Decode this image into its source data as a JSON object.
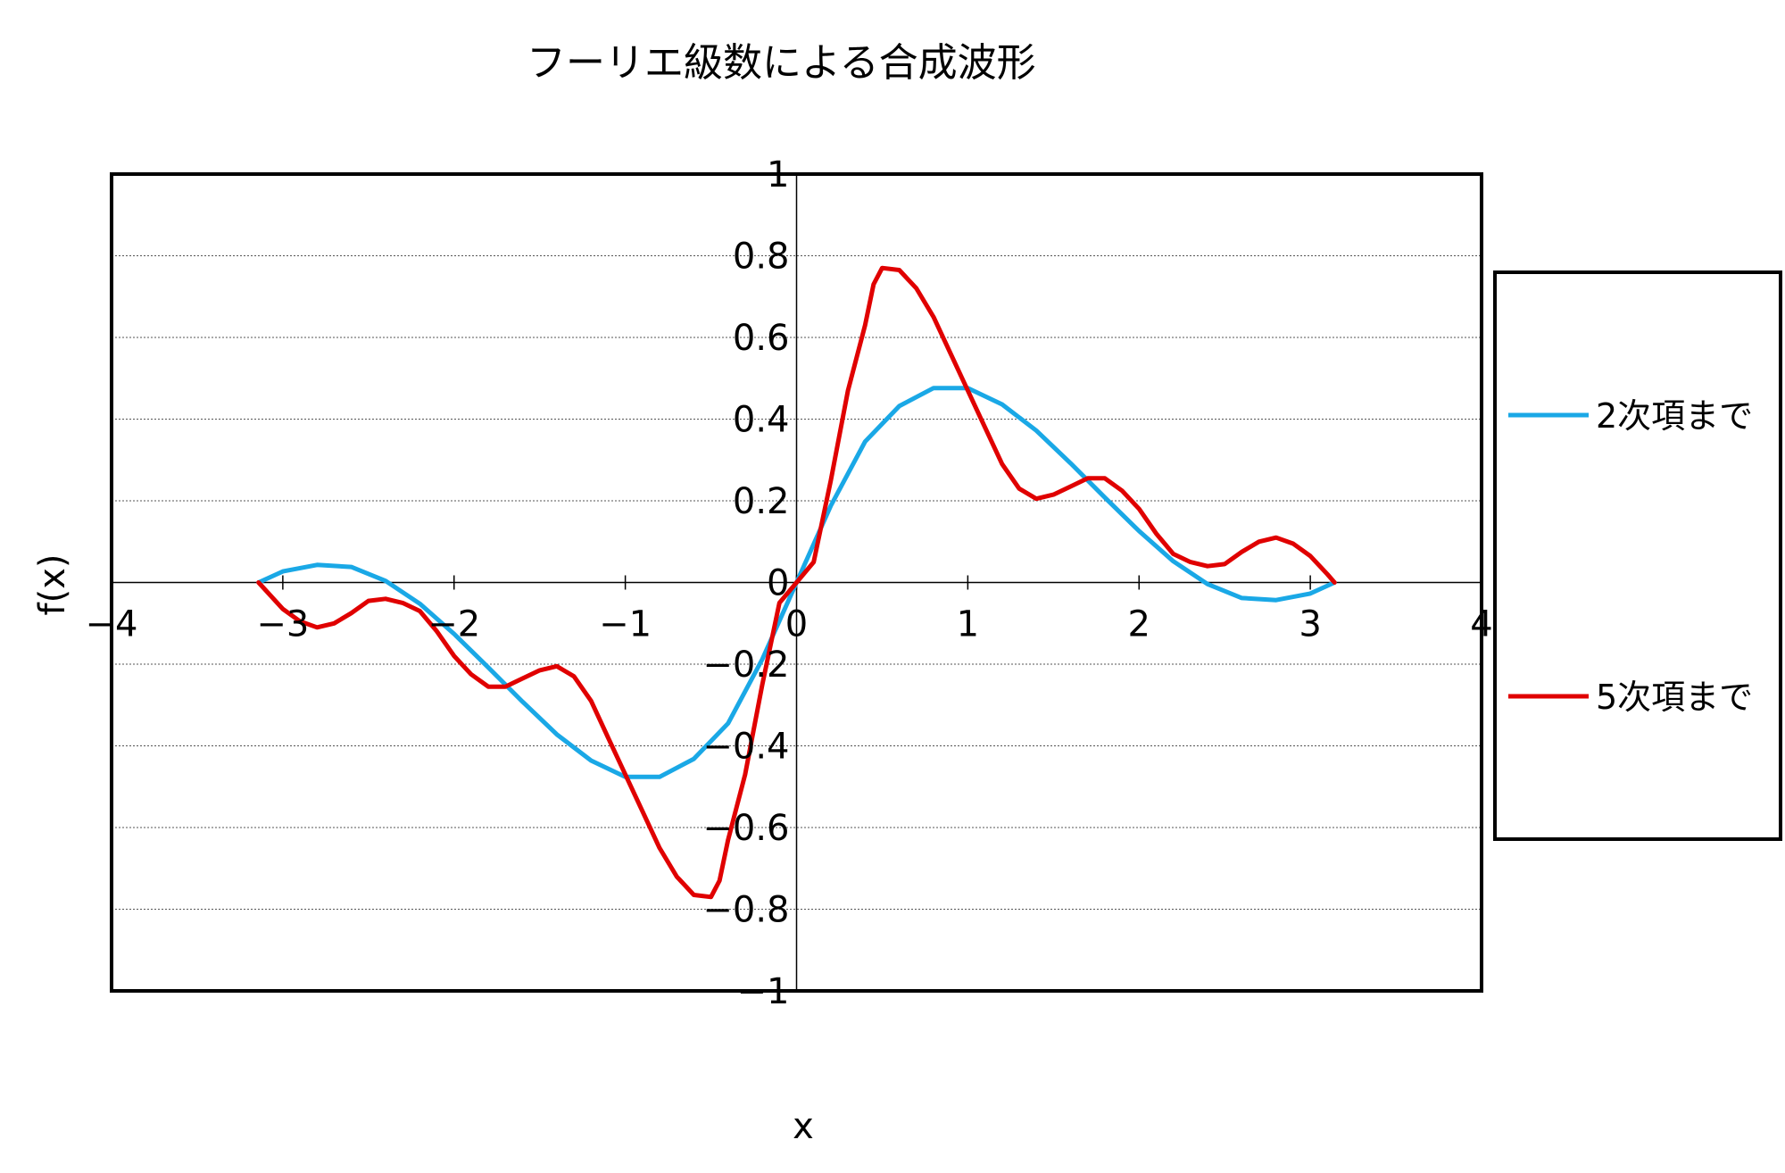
{
  "chart_data": {
    "type": "line",
    "title": "フーリエ級数による合成波形",
    "xlabel": "x",
    "ylabel": "f(x)",
    "xlim": [
      -4,
      4
    ],
    "ylim": [
      -1,
      1
    ],
    "x_ticks": [
      "−4",
      "−3",
      "−2",
      "−1",
      "0",
      "1",
      "2",
      "3",
      "4"
    ],
    "y_ticks": [
      "−1",
      "−0.8",
      "−0.6",
      "−0.4",
      "−0.2",
      "0",
      "0.2",
      "0.4",
      "0.6",
      "0.8",
      "1"
    ],
    "grid": "horizontal dotted",
    "legend_position": "right",
    "series": [
      {
        "name": "2次項まで",
        "color": "#1aa8e6",
        "x": [
          -3.1416,
          -3.0,
          -2.8,
          -2.6,
          -2.4,
          -2.2,
          -2.0,
          -1.8,
          -1.6,
          -1.4,
          -1.2,
          -1.0,
          -0.8,
          -0.6,
          -0.4,
          -0.2,
          0.0,
          0.2,
          0.4,
          0.6,
          0.8,
          1.0,
          1.2,
          1.4,
          1.6,
          1.8,
          2.0,
          2.2,
          2.4,
          2.6,
          2.8,
          3.0,
          3.1416
        ],
        "y": [
          0.0,
          0.027,
          0.043,
          0.038,
          0.004,
          -0.052,
          -0.126,
          -0.208,
          -0.292,
          -0.372,
          -0.436,
          -0.476,
          -0.476,
          -0.432,
          -0.345,
          -0.188,
          0.0,
          0.188,
          0.345,
          0.432,
          0.476,
          0.476,
          0.436,
          0.372,
          0.292,
          0.208,
          0.126,
          0.052,
          -0.004,
          -0.038,
          -0.043,
          -0.027,
          0.0
        ]
      },
      {
        "name": "5次項まで",
        "color": "#e00000",
        "x": [
          -3.1416,
          -3.0,
          -2.9,
          -2.8,
          -2.7,
          -2.6,
          -2.5,
          -2.4,
          -2.3,
          -2.2,
          -2.1,
          -2.0,
          -1.9,
          -1.8,
          -1.7,
          -1.6,
          -1.5,
          -1.4,
          -1.3,
          -1.2,
          -1.1,
          -1.0,
          -0.9,
          -0.8,
          -0.7,
          -0.6,
          -0.5,
          -0.45,
          -0.4,
          -0.3,
          -0.2,
          -0.1,
          0.0,
          0.1,
          0.2,
          0.3,
          0.4,
          0.45,
          0.5,
          0.6,
          0.7,
          0.8,
          0.9,
          1.0,
          1.1,
          1.2,
          1.3,
          1.4,
          1.5,
          1.6,
          1.7,
          1.8,
          1.9,
          2.0,
          2.1,
          2.2,
          2.3,
          2.4,
          2.5,
          2.6,
          2.7,
          2.8,
          2.9,
          3.0,
          3.1,
          3.1416
        ],
        "y": [
          0.0,
          -0.065,
          -0.095,
          -0.11,
          -0.1,
          -0.075,
          -0.045,
          -0.04,
          -0.05,
          -0.07,
          -0.12,
          -0.18,
          -0.225,
          -0.255,
          -0.255,
          -0.235,
          -0.215,
          -0.205,
          -0.23,
          -0.29,
          -0.38,
          -0.47,
          -0.56,
          -0.65,
          -0.72,
          -0.765,
          -0.77,
          -0.73,
          -0.63,
          -0.47,
          -0.25,
          -0.05,
          0.0,
          0.05,
          0.25,
          0.47,
          0.63,
          0.73,
          0.77,
          0.765,
          0.72,
          0.65,
          0.56,
          0.47,
          0.38,
          0.29,
          0.23,
          0.205,
          0.215,
          0.235,
          0.255,
          0.255,
          0.225,
          0.18,
          0.12,
          0.07,
          0.05,
          0.04,
          0.045,
          0.075,
          0.1,
          0.11,
          0.095,
          0.065,
          0.02,
          0.0
        ]
      }
    ]
  }
}
